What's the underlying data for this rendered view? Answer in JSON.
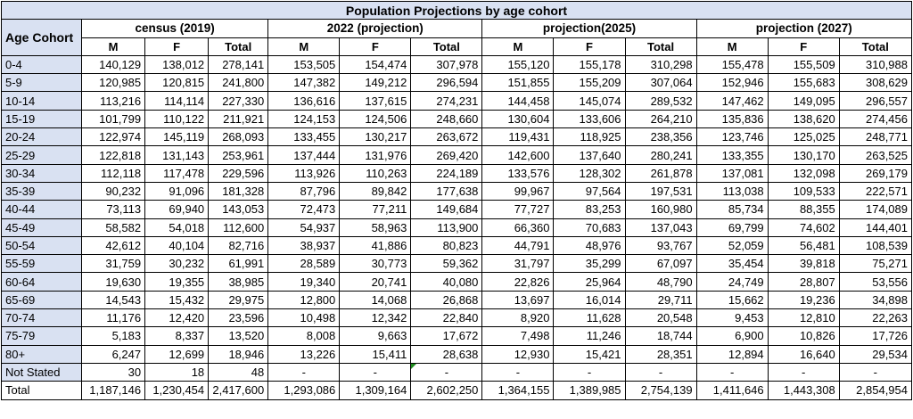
{
  "title": "Population Projections by age cohort",
  "header": {
    "cohort_label": "Age Cohort",
    "groups": [
      "census (2019)",
      "2022 (projection)",
      "projection(2025)",
      "projection (2027)"
    ],
    "sub": [
      "M",
      "F",
      "Total"
    ]
  },
  "rows": [
    {
      "label": "0-4",
      "values": [
        "140,129",
        "138,012",
        "278,141",
        "153,505",
        "154,474",
        "307,978",
        "155,120",
        "155,178",
        "310,298",
        "155,478",
        "155,509",
        "310,988"
      ]
    },
    {
      "label": "5-9",
      "values": [
        "120,985",
        "120,815",
        "241,800",
        "147,382",
        "149,212",
        "296,594",
        "151,855",
        "155,209",
        "307,064",
        "152,946",
        "155,683",
        "308,629"
      ]
    },
    {
      "label": "10-14",
      "values": [
        "113,216",
        "114,114",
        "227,330",
        "136,616",
        "137,615",
        "274,231",
        "144,458",
        "145,074",
        "289,532",
        "147,462",
        "149,095",
        "296,557"
      ]
    },
    {
      "label": "15-19",
      "values": [
        "101,799",
        "110,122",
        "211,921",
        "124,153",
        "124,506",
        "248,660",
        "130,604",
        "133,606",
        "264,210",
        "135,836",
        "138,620",
        "274,456"
      ]
    },
    {
      "label": "20-24",
      "values": [
        "122,974",
        "145,119",
        "268,093",
        "133,455",
        "130,217",
        "263,672",
        "119,431",
        "118,925",
        "238,356",
        "123,746",
        "125,025",
        "248,771"
      ]
    },
    {
      "label": "25-29",
      "values": [
        "122,818",
        "131,143",
        "253,961",
        "137,444",
        "131,976",
        "269,420",
        "142,600",
        "137,640",
        "280,241",
        "133,355",
        "130,170",
        "263,525"
      ]
    },
    {
      "label": "30-34",
      "values": [
        "112,118",
        "117,478",
        "229,596",
        "113,926",
        "110,263",
        "224,189",
        "133,576",
        "128,302",
        "261,878",
        "137,081",
        "132,098",
        "269,179"
      ]
    },
    {
      "label": "35-39",
      "values": [
        "90,232",
        "91,096",
        "181,328",
        "87,796",
        "89,842",
        "177,638",
        "99,967",
        "97,564",
        "197,531",
        "113,038",
        "109,533",
        "222,571"
      ]
    },
    {
      "label": "40-44",
      "values": [
        "73,113",
        "69,940",
        "143,053",
        "72,473",
        "77,211",
        "149,684",
        "77,727",
        "83,253",
        "160,980",
        "85,734",
        "88,355",
        "174,089"
      ]
    },
    {
      "label": "45-49",
      "values": [
        "58,582",
        "54,018",
        "112,600",
        "54,937",
        "58,963",
        "113,900",
        "66,360",
        "70,683",
        "137,043",
        "69,799",
        "74,602",
        "144,401"
      ]
    },
    {
      "label": "50-54",
      "values": [
        "42,612",
        "40,104",
        "82,716",
        "38,937",
        "41,886",
        "80,823",
        "44,791",
        "48,976",
        "93,767",
        "52,059",
        "56,481",
        "108,539"
      ]
    },
    {
      "label": "55-59",
      "values": [
        "31,759",
        "30,232",
        "61,991",
        "28,589",
        "30,773",
        "59,362",
        "31,797",
        "35,299",
        "67,097",
        "35,454",
        "39,818",
        "75,271"
      ]
    },
    {
      "label": "60-64",
      "values": [
        "19,630",
        "19,355",
        "38,985",
        "19,340",
        "20,741",
        "40,080",
        "22,826",
        "25,964",
        "48,790",
        "24,749",
        "28,807",
        "53,556"
      ]
    },
    {
      "label": "65-69",
      "values": [
        "14,543",
        "15,432",
        "29,975",
        "12,800",
        "14,068",
        "26,868",
        "13,697",
        "16,014",
        "29,711",
        "15,662",
        "19,236",
        "34,898"
      ]
    },
    {
      "label": "70-74",
      "values": [
        "11,176",
        "12,420",
        "23,596",
        "10,498",
        "12,342",
        "22,840",
        "8,920",
        "11,628",
        "20,548",
        "9,453",
        "12,810",
        "22,263"
      ]
    },
    {
      "label": "75-79",
      "values": [
        "5,183",
        "8,337",
        "13,520",
        "8,008",
        "9,663",
        "17,672",
        "7,498",
        "11,246",
        "18,744",
        "6,900",
        "10,826",
        "17,726"
      ]
    },
    {
      "label": "80+",
      "values": [
        "6,247",
        "12,699",
        "18,946",
        "13,226",
        "15,411",
        "28,638",
        "12,930",
        "15,421",
        "28,351",
        "12,894",
        "16,640",
        "29,534"
      ]
    },
    {
      "label": "Not Stated",
      "values": [
        "30",
        "18",
        "48",
        "-",
        "-",
        "-",
        "-",
        "-",
        "-",
        "-",
        "-",
        "-"
      ]
    }
  ],
  "total": {
    "label": "Total",
    "values": [
      "1,187,146",
      "1,230,454",
      "2,417,600",
      "1,293,086",
      "1,309,164",
      "2,602,250",
      "1,364,155",
      "1,389,985",
      "2,754,139",
      "1,411,646",
      "1,443,308",
      "2,854,954"
    ]
  }
}
